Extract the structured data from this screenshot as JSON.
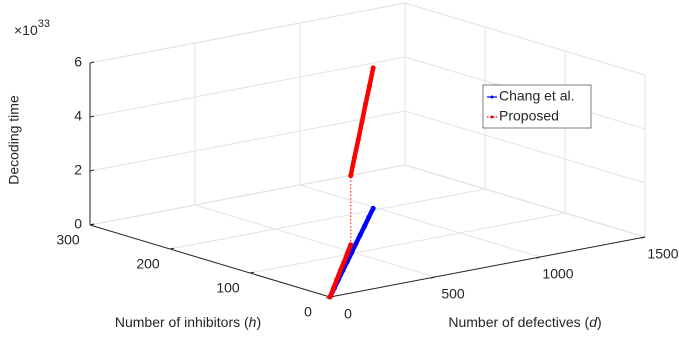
{
  "chart_data": {
    "type": "line3d",
    "xlabel": [
      "Number of defectives (",
      "d",
      ")"
    ],
    "ylabel": [
      "Number of inhibitors (",
      "h",
      ")"
    ],
    "zlabel": "Decoding time",
    "z_exponent": {
      "base": "×10",
      "power": "33"
    },
    "xlim": [
      0,
      1500
    ],
    "xticks": [
      0,
      500,
      1000,
      1500
    ],
    "ylim": [
      0,
      300
    ],
    "yticks": [
      0,
      100,
      200,
      300
    ],
    "zlim": [
      0,
      6
    ],
    "zticks": [
      0,
      2,
      4,
      6
    ],
    "grid": true,
    "legend_position": "upper right",
    "series": [
      {
        "name": "Chang et al.",
        "color": "#0000ff",
        "line_style": "solid",
        "x": [
          0,
          78,
          155,
          233,
          311,
          389,
          466,
          544,
          622,
          699,
          777
        ],
        "y": [
          0,
          15,
          30,
          45,
          60,
          75,
          90,
          105,
          120,
          135,
          150
        ],
        "z": [
          0,
          0.08,
          0.16,
          0.24,
          0.32,
          0.4,
          0.48,
          0.56,
          0.64,
          0.72,
          0.8
        ]
      },
      {
        "name": "Proposed",
        "color": "#ff0000",
        "line_style": "dotted",
        "x": [
          0,
          62,
          124,
          186,
          249,
          311,
          373,
          373,
          440,
          508,
          575,
          642,
          710,
          777
        ],
        "y": [
          0,
          12,
          24,
          36,
          48,
          60,
          72,
          72,
          85,
          98,
          111,
          124,
          137,
          150
        ],
        "z": [
          0,
          0.12,
          0.25,
          0.37,
          0.49,
          0.62,
          0.74,
          3.3,
          3.75,
          4.2,
          4.65,
          5.1,
          5.55,
          6.0
        ]
      }
    ]
  }
}
